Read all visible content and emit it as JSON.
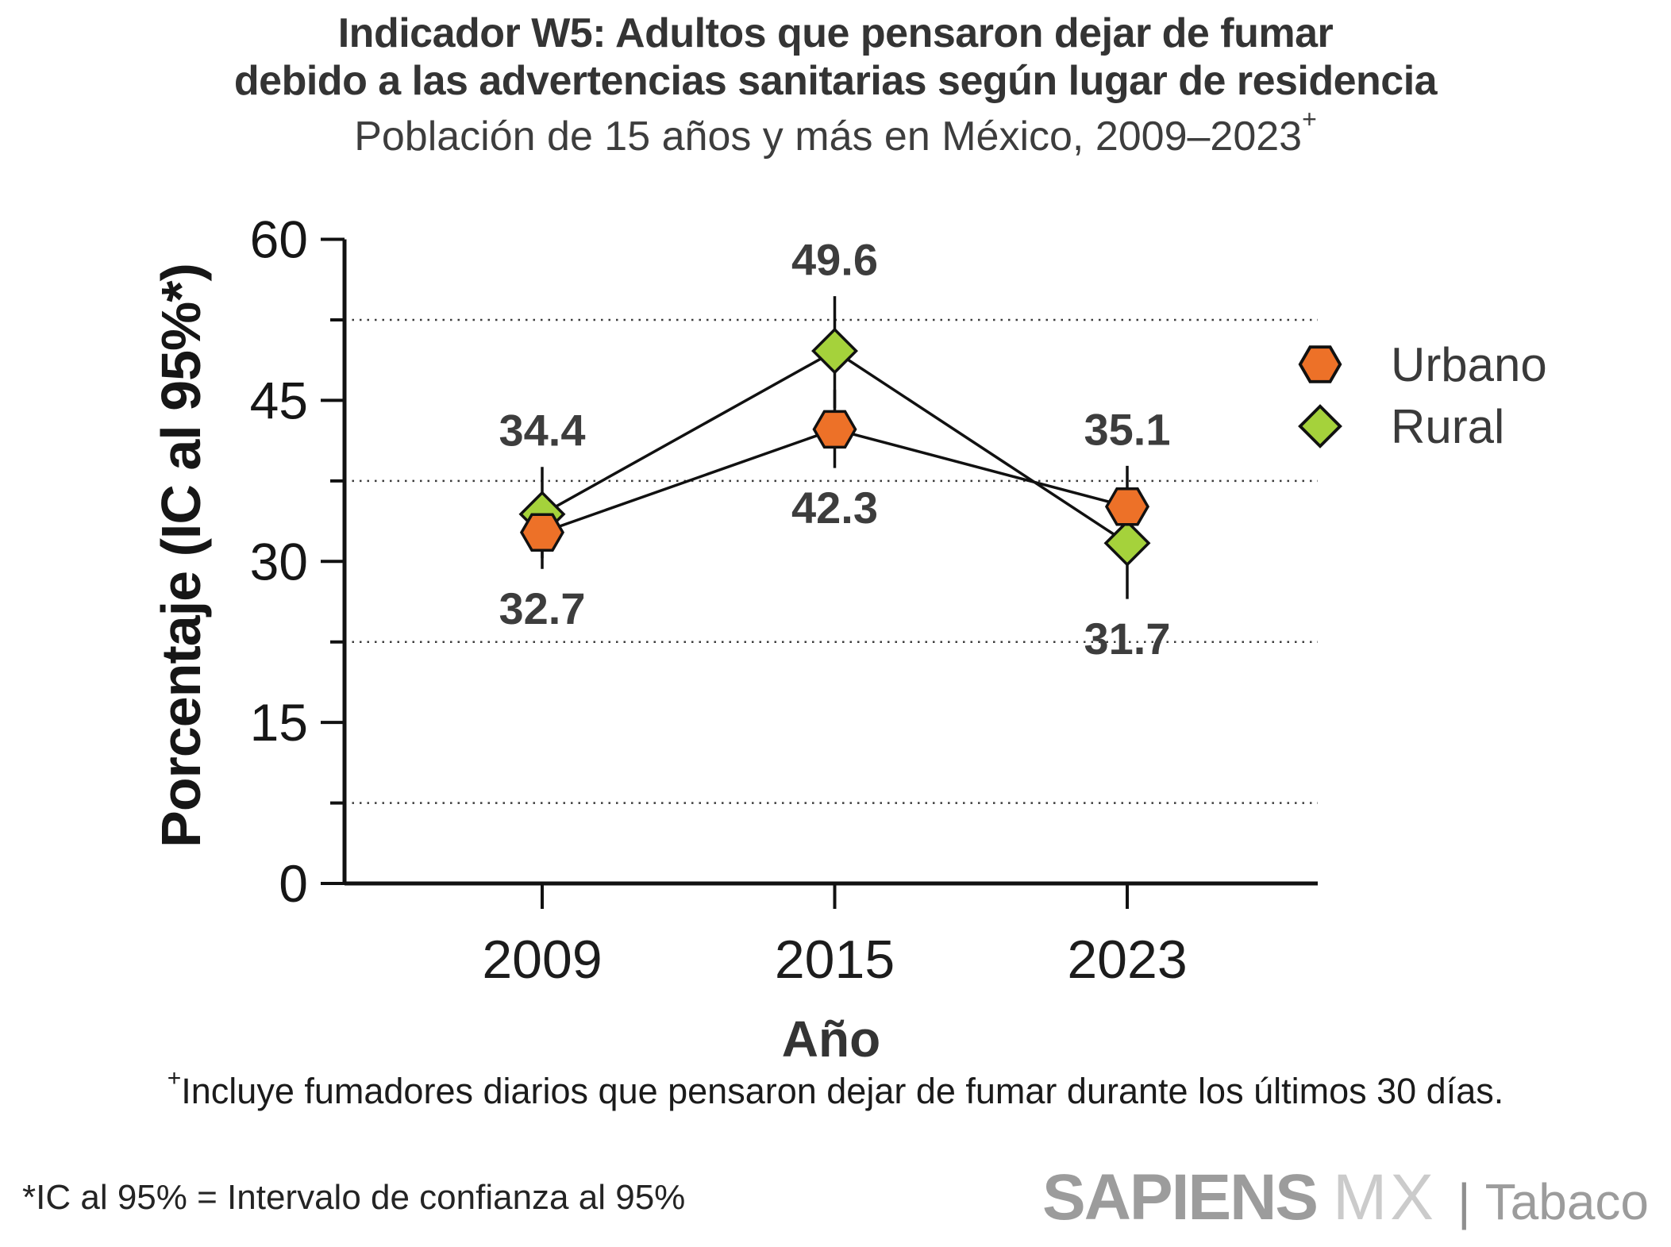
{
  "header": {
    "title_line1": "Indicador W5: Adultos que pensaron dejar de fumar",
    "title_line2": "debido a las advertencias sanitarias según lugar de residencia",
    "subtitle_text": "Población de 15 años y más en México, 2009–2023",
    "subtitle_sup": "+"
  },
  "chart_data": {
    "type": "line",
    "title": "Indicador W5: Adultos que pensaron dejar de fumar debido a las advertencias sanitarias según lugar de residencia",
    "subtitle": "Población de 15 años y más en México, 2009–2023+",
    "categories": [
      "2009",
      "2015",
      "2023"
    ],
    "xlabel": "Año",
    "ylabel": "Porcentaje (IC al 95%*)",
    "ylim": [
      0,
      60
    ],
    "yticks": [
      0,
      15,
      30,
      45,
      60
    ],
    "minor_gridlines": [
      7.5,
      22.5,
      37.5,
      52.5
    ],
    "grid": "horizontal dotted lines at minor ticks",
    "legend_position": "right",
    "error_bars": "95% confidence intervals (whisker extents estimated from plot)",
    "line_color": "#111111",
    "series": [
      {
        "name": "Urbano",
        "marker": "hexagon",
        "color": "#ED7128",
        "values": [
          32.7,
          42.3,
          35.1
        ],
        "ci_low": [
          29.3,
          38.7,
          31.5
        ],
        "ci_high": [
          35.8,
          46.0,
          38.9
        ],
        "label_side": [
          "below",
          "below",
          "above"
        ]
      },
      {
        "name": "Rural",
        "marker": "diamond",
        "color": "#A5D23B",
        "values": [
          34.4,
          49.6,
          31.7
        ],
        "ci_low": [
          30.3,
          44.3,
          26.5
        ],
        "ci_high": [
          38.8,
          54.7,
          36.5
        ],
        "label_side": [
          "above",
          "above",
          "below"
        ]
      }
    ]
  },
  "footnotes": {
    "note1_sup": "+",
    "note1_text": "Incluye fumadores diarios que pensaron dejar de fumar durante los últimos 30 días.",
    "note2": "*IC al 95% = Intervalo de confianza al 95%"
  },
  "logo": {
    "brand": "SAPIENS",
    "region": "MX",
    "separator": "|",
    "product": "Tabaco"
  }
}
